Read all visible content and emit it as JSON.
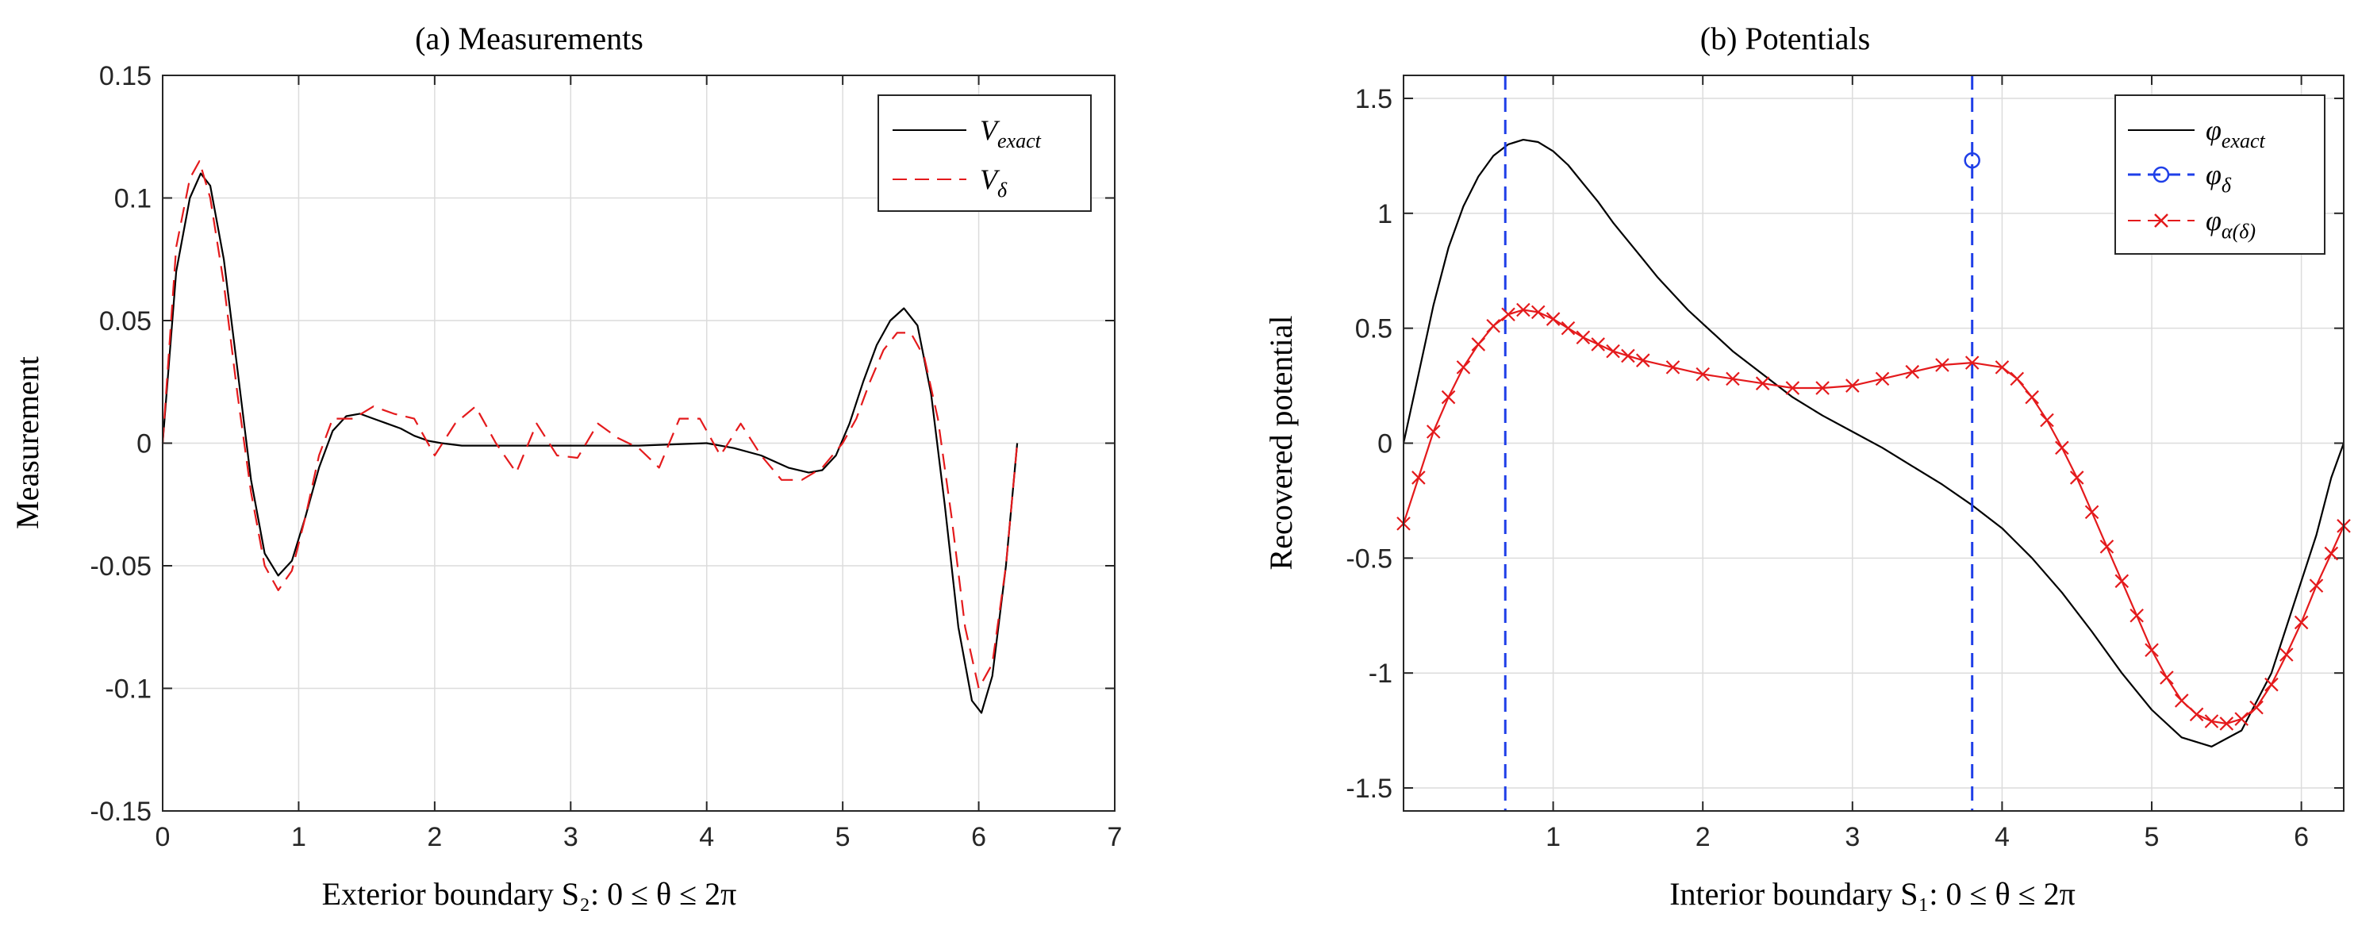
{
  "chart_data": [
    {
      "type": "line",
      "title": "(a) Measurements",
      "xlabel": "Exterior boundary S₂: 0 ≤ θ ≤ 2π",
      "ylabel": "Measurement",
      "xlim": [
        0,
        7
      ],
      "ylim": [
        -0.15,
        0.15
      ],
      "grid": true,
      "xticks": [
        0,
        1,
        2,
        3,
        4,
        5,
        6,
        7
      ],
      "xtick_labels": [
        "0",
        "1",
        "2",
        "3",
        "4",
        "5",
        "6",
        "7"
      ],
      "yticks": [
        -0.15,
        -0.1,
        -0.05,
        0,
        0.05,
        0.1,
        0.15
      ],
      "ytick_labels": [
        "-0.15",
        "-0.1",
        "-0.05",
        "0",
        "0.05",
        "0.1",
        "0.15"
      ],
      "legend_position": "top-right",
      "series": [
        {
          "name": "V_exact",
          "legend_main": "V",
          "legend_sub": "exact",
          "color": "#000000",
          "style": "solid",
          "x": [
            0,
            0.1,
            0.2,
            0.28,
            0.35,
            0.45,
            0.55,
            0.65,
            0.75,
            0.85,
            0.95,
            1.05,
            1.15,
            1.25,
            1.35,
            1.45,
            1.55,
            1.65,
            1.75,
            1.85,
            1.95,
            2.05,
            2.2,
            2.5,
            3.0,
            3.5,
            4.0,
            4.2,
            4.4,
            4.6,
            4.75,
            4.85,
            4.95,
            5.05,
            5.15,
            5.25,
            5.35,
            5.45,
            5.55,
            5.65,
            5.75,
            5.85,
            5.95,
            6.02,
            6.1,
            6.2,
            6.283
          ],
          "values": [
            0,
            0.07,
            0.1,
            0.11,
            0.105,
            0.075,
            0.03,
            -0.015,
            -0.045,
            -0.054,
            -0.048,
            -0.03,
            -0.01,
            0.005,
            0.011,
            0.012,
            0.01,
            0.008,
            0.006,
            0.003,
            0.001,
            0,
            -0.001,
            -0.001,
            -0.001,
            -0.001,
            0,
            -0.002,
            -0.005,
            -0.01,
            -0.012,
            -0.011,
            -0.005,
            0.008,
            0.025,
            0.04,
            0.05,
            0.055,
            0.048,
            0.02,
            -0.025,
            -0.075,
            -0.105,
            -0.11,
            -0.095,
            -0.05,
            0
          ]
        },
        {
          "name": "V_δ",
          "legend_main": "V",
          "legend_sub": "δ",
          "color": "#e41a1c",
          "style": "dashed",
          "x": [
            0,
            0.1,
            0.2,
            0.27,
            0.35,
            0.45,
            0.55,
            0.65,
            0.75,
            0.85,
            0.95,
            1.05,
            1.15,
            1.25,
            1.4,
            1.55,
            1.7,
            1.85,
            2.0,
            2.15,
            2.3,
            2.45,
            2.6,
            2.75,
            2.9,
            3.05,
            3.2,
            3.35,
            3.5,
            3.65,
            3.8,
            3.95,
            4.1,
            4.25,
            4.4,
            4.55,
            4.7,
            4.85,
            5.0,
            5.1,
            5.2,
            5.3,
            5.4,
            5.5,
            5.6,
            5.7,
            5.8,
            5.9,
            6.0,
            6.1,
            6.2,
            6.283
          ],
          "values": [
            0,
            0.08,
            0.108,
            0.115,
            0.1,
            0.065,
            0.02,
            -0.02,
            -0.05,
            -0.06,
            -0.052,
            -0.03,
            -0.005,
            0.01,
            0.01,
            0.015,
            0.012,
            0.01,
            -0.005,
            0.008,
            0.015,
            0.0,
            -0.012,
            0.008,
            -0.005,
            -0.006,
            0.008,
            0.002,
            -0.002,
            -0.01,
            0.01,
            0.01,
            -0.005,
            0.008,
            -0.005,
            -0.015,
            -0.015,
            -0.01,
            0.0,
            0.01,
            0.025,
            0.038,
            0.045,
            0.045,
            0.035,
            0.01,
            -0.03,
            -0.075,
            -0.1,
            -0.09,
            -0.05,
            0
          ]
        }
      ]
    },
    {
      "type": "line",
      "title": "(b) Potentials",
      "xlabel": "Interior boundary S₁: 0 ≤ θ ≤ 2π",
      "ylabel": "Recovered potential",
      "xlim": [
        0,
        6.283
      ],
      "ylim": [
        -1.6,
        1.6
      ],
      "grid": true,
      "xticks": [
        1,
        2,
        3,
        4,
        5,
        6
      ],
      "xtick_labels": [
        "1",
        "2",
        "3",
        "4",
        "5",
        "6"
      ],
      "yticks": [
        -1.5,
        -1,
        -0.5,
        0,
        0.5,
        1,
        1.5
      ],
      "ytick_labels": [
        "-1.5",
        "-1",
        "-0.5",
        "0",
        "0.5",
        "1",
        "1.5"
      ],
      "legend_position": "top-right",
      "series": [
        {
          "name": "φ_exact",
          "legend_main": "φ",
          "legend_sub": "exact",
          "color": "#000000",
          "style": "solid",
          "x": [
            0,
            0.1,
            0.2,
            0.3,
            0.4,
            0.5,
            0.6,
            0.7,
            0.8,
            0.9,
            1.0,
            1.1,
            1.2,
            1.3,
            1.4,
            1.5,
            1.6,
            1.7,
            1.8,
            1.9,
            2.0,
            2.2,
            2.4,
            2.6,
            2.8,
            3.0,
            3.2,
            3.4,
            3.6,
            3.8,
            4.0,
            4.2,
            4.4,
            4.6,
            4.8,
            5.0,
            5.2,
            5.4,
            5.6,
            5.8,
            6.0,
            6.1,
            6.2,
            6.283
          ],
          "values": [
            0,
            0.3,
            0.6,
            0.85,
            1.03,
            1.16,
            1.25,
            1.3,
            1.32,
            1.31,
            1.27,
            1.21,
            1.13,
            1.05,
            0.96,
            0.88,
            0.8,
            0.72,
            0.65,
            0.58,
            0.52,
            0.4,
            0.3,
            0.2,
            0.12,
            0.05,
            -0.02,
            -0.1,
            -0.18,
            -0.27,
            -0.37,
            -0.5,
            -0.65,
            -0.82,
            -1.0,
            -1.16,
            -1.28,
            -1.32,
            -1.25,
            -1.0,
            -0.6,
            -0.4,
            -0.15,
            0
          ]
        },
        {
          "name": "φ_δ",
          "legend_main": "φ",
          "legend_sub": "δ",
          "color": "#1f3fe8",
          "style": "dashed-vertical",
          "marker": "o",
          "vlines_x": [
            0.68,
            3.8
          ],
          "points": [
            [
              3.8,
              1.23
            ]
          ]
        },
        {
          "name": "φ_α(δ)",
          "legend_main": "φ",
          "legend_sub": "α(δ)",
          "color": "#e41a1c",
          "style": "solid",
          "marker": "x",
          "x": [
            0,
            0.1,
            0.2,
            0.3,
            0.4,
            0.5,
            0.6,
            0.7,
            0.8,
            0.9,
            1.0,
            1.1,
            1.2,
            1.3,
            1.4,
            1.5,
            1.6,
            1.8,
            2.0,
            2.2,
            2.4,
            2.6,
            2.8,
            3.0,
            3.2,
            3.4,
            3.6,
            3.8,
            4.0,
            4.1,
            4.2,
            4.3,
            4.4,
            4.5,
            4.6,
            4.7,
            4.8,
            4.9,
            5.0,
            5.1,
            5.2,
            5.3,
            5.4,
            5.5,
            5.6,
            5.7,
            5.8,
            5.9,
            6.0,
            6.1,
            6.2,
            6.283
          ],
          "values": [
            -0.35,
            -0.15,
            0.05,
            0.2,
            0.33,
            0.43,
            0.51,
            0.56,
            0.58,
            0.57,
            0.54,
            0.5,
            0.46,
            0.43,
            0.4,
            0.38,
            0.36,
            0.33,
            0.3,
            0.28,
            0.26,
            0.24,
            0.24,
            0.25,
            0.28,
            0.31,
            0.34,
            0.35,
            0.33,
            0.28,
            0.2,
            0.1,
            -0.02,
            -0.15,
            -0.3,
            -0.45,
            -0.6,
            -0.75,
            -0.9,
            -1.02,
            -1.12,
            -1.18,
            -1.21,
            -1.22,
            -1.2,
            -1.15,
            -1.05,
            -0.92,
            -0.78,
            -0.62,
            -0.48,
            -0.36
          ]
        }
      ]
    }
  ]
}
